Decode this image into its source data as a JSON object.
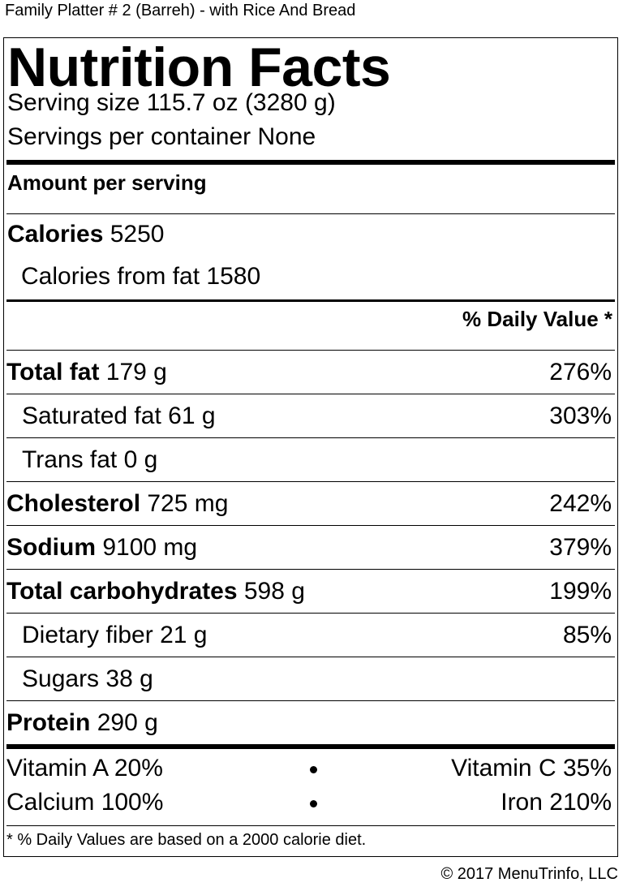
{
  "page_title": "Family Platter # 2 (Barreh) - with Rice And Bread",
  "label": {
    "heading": "Nutrition Facts",
    "serving_size": "Serving size 115.7 oz (3280 g)",
    "servings_per_container": "Servings per container None",
    "amount_per_serving": "Amount per serving",
    "calories_label": "Calories",
    "calories_value": "5250",
    "calories_from_fat": "Calories from fat 1580",
    "dv_header": "% Daily Value *",
    "nutrients": [
      {
        "name": "Total fat",
        "amount": "179 g",
        "dv": "276%"
      },
      {
        "name": "Saturated fat",
        "amount": "61 g",
        "dv": "303%"
      },
      {
        "name": "Trans fat",
        "amount": "0 g",
        "dv": ""
      },
      {
        "name": "Cholesterol",
        "amount": "725 mg",
        "dv": "242%"
      },
      {
        "name": "Sodium",
        "amount": "9100 mg",
        "dv": "379%"
      },
      {
        "name": "Total carbohydrates",
        "amount": "598 g",
        "dv": "199%"
      },
      {
        "name": "Dietary fiber",
        "amount": "21 g",
        "dv": "85%"
      },
      {
        "name": "Sugars",
        "amount": "38 g",
        "dv": ""
      },
      {
        "name": "Protein",
        "amount": "290 g",
        "dv": ""
      }
    ],
    "vitamins": [
      {
        "left": "Vitamin A 20%",
        "right": "Vitamin C 35%"
      },
      {
        "left": "Calcium 100%",
        "right": "Iron 210%"
      }
    ],
    "footnote": "* % Daily Values are based on a 2000 calorie diet."
  },
  "copyright": "© 2017 MenuTrinfo, LLC"
}
